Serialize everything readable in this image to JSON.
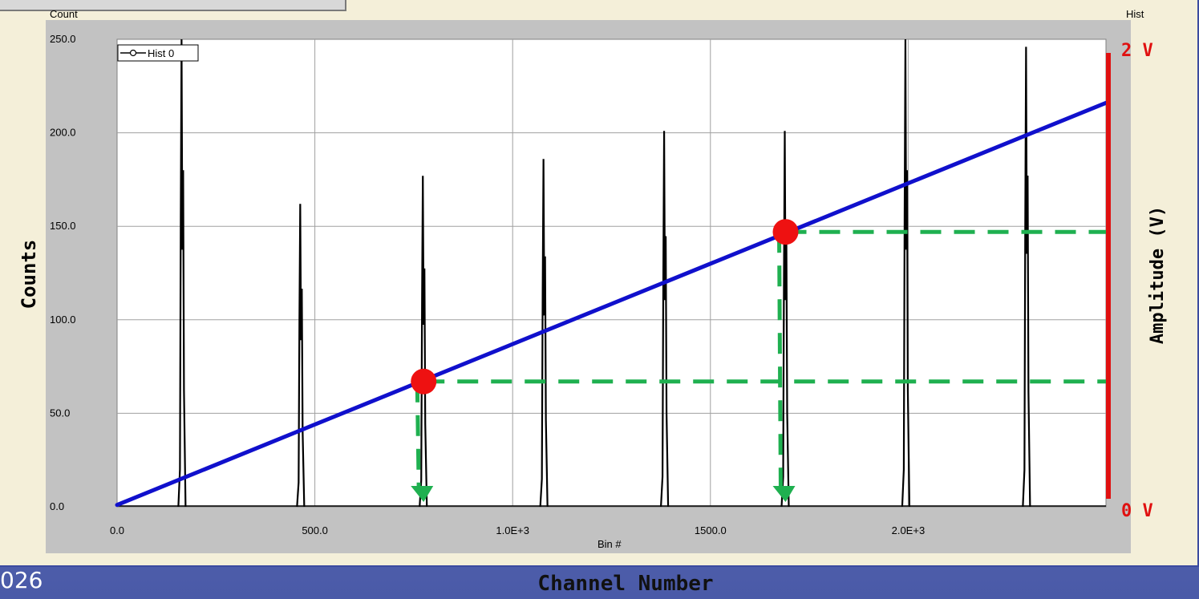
{
  "slide_number": "026",
  "chart_data": {
    "type": "line",
    "top_left_label": "Count",
    "top_right_label": "Hist",
    "xlabel": "Bin #",
    "outer_xlabel": "Channel Number",
    "ylabel": "Counts",
    "right_ylabel": "Amplitude (V)",
    "xlim": [
      0,
      2500
    ],
    "ylim": [
      0,
      250
    ],
    "x_ticks": [
      {
        "value": 0,
        "label": "0.0"
      },
      {
        "value": 500,
        "label": "500.0"
      },
      {
        "value": 1000,
        "label": "1.0E+3"
      },
      {
        "value": 1500,
        "label": "1500.0"
      },
      {
        "value": 2000,
        "label": "2.0E+3"
      }
    ],
    "y_ticks": [
      {
        "value": 0,
        "label": "0.0"
      },
      {
        "value": 50,
        "label": "50.0"
      },
      {
        "value": 100,
        "label": "100.0"
      },
      {
        "value": 150,
        "label": "150.0"
      },
      {
        "value": 200,
        "label": "200.0"
      },
      {
        "value": 250,
        "label": "250.0"
      }
    ],
    "grid": true,
    "legend": {
      "position": "top-left",
      "entries": [
        "Hist 0"
      ]
    },
    "series": [
      {
        "name": "Hist 0",
        "color": "#000000",
        "peaks": [
          {
            "x": 165,
            "y": 250
          },
          {
            "x": 465,
            "y": 162
          },
          {
            "x": 775,
            "y": 177
          },
          {
            "x": 1080,
            "y": 186
          },
          {
            "x": 1385,
            "y": 201
          },
          {
            "x": 1690,
            "y": 201
          },
          {
            "x": 1995,
            "y": 250
          },
          {
            "x": 2300,
            "y": 246
          }
        ]
      }
    ],
    "amplitude_axis": {
      "color": "#e01010",
      "top_label": "2 V",
      "bottom_label": "0 V",
      "range": [
        0,
        2
      ]
    },
    "annotation_overlay": {
      "fit_line": {
        "color": "#1010cc",
        "from": {
          "x": 0,
          "y": 1
        },
        "to": {
          "x": 2500,
          "y": 216
        }
      },
      "marker_color": "#ee1111",
      "markers": [
        {
          "x": 775,
          "y": 67
        },
        {
          "x": 1690,
          "y": 147
        }
      ],
      "guide_color": "#1fb050"
    }
  }
}
